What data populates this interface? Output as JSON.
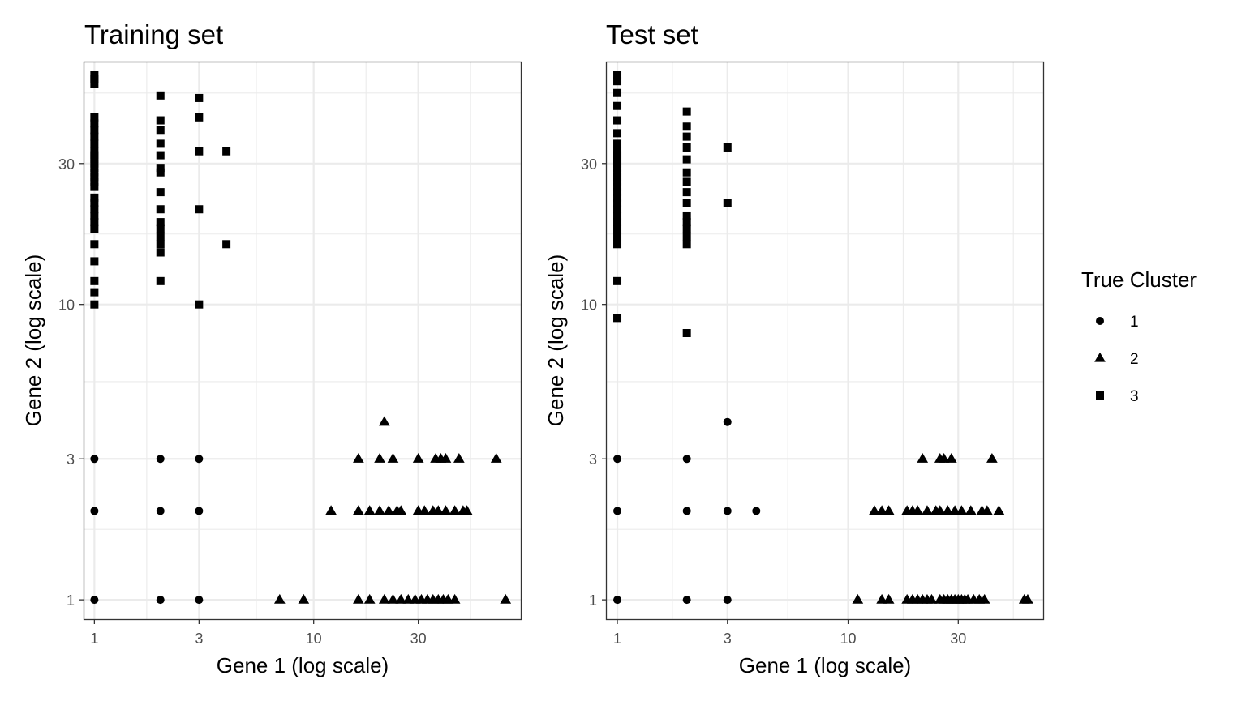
{
  "chart_data": [
    {
      "type": "scatter",
      "title": "Training set",
      "xlabel": "Gene 1 (log scale)",
      "ylabel": "Gene 2 (log scale)",
      "x_scale": "log",
      "y_scale": "log",
      "xlim": [
        0.9,
        88
      ],
      "ylim": [
        0.86,
        66
      ],
      "xticks": [
        1,
        3,
        10,
        30
      ],
      "xtick_labels": [
        "1",
        "3",
        "10",
        "30"
      ],
      "yticks": [
        1,
        3,
        10,
        30
      ],
      "ytick_labels": [
        "1",
        "3",
        "10",
        "30"
      ],
      "grid": true,
      "series": [
        {
          "name": "1",
          "shape": "circle",
          "points": [
            [
              1,
              1
            ],
            [
              1,
              2
            ],
            [
              1,
              3
            ],
            [
              2,
              1
            ],
            [
              2,
              2
            ],
            [
              2,
              3
            ],
            [
              3,
              1
            ],
            [
              3,
              2
            ],
            [
              3,
              3
            ]
          ]
        },
        {
          "name": "2",
          "shape": "triangle",
          "points": [
            [
              7,
              1
            ],
            [
              9,
              1
            ],
            [
              16,
              1
            ],
            [
              18,
              1
            ],
            [
              21,
              1
            ],
            [
              23,
              1
            ],
            [
              25,
              1
            ],
            [
              27,
              1
            ],
            [
              29,
              1
            ],
            [
              31,
              1
            ],
            [
              33,
              1
            ],
            [
              35,
              1
            ],
            [
              37,
              1
            ],
            [
              39,
              1
            ],
            [
              41,
              1
            ],
            [
              44,
              1
            ],
            [
              75,
              1
            ],
            [
              12,
              2
            ],
            [
              16,
              2
            ],
            [
              18,
              2
            ],
            [
              20,
              2
            ],
            [
              22,
              2
            ],
            [
              24,
              2
            ],
            [
              25,
              2
            ],
            [
              30,
              2
            ],
            [
              32,
              2
            ],
            [
              35,
              2
            ],
            [
              37,
              2
            ],
            [
              40,
              2
            ],
            [
              44,
              2
            ],
            [
              48,
              2
            ],
            [
              50,
              2
            ],
            [
              16,
              3
            ],
            [
              20,
              3
            ],
            [
              23,
              3
            ],
            [
              30,
              3
            ],
            [
              36,
              3
            ],
            [
              38,
              3
            ],
            [
              40,
              3
            ],
            [
              46,
              3
            ],
            [
              68,
              3
            ],
            [
              21,
              4
            ]
          ]
        },
        {
          "name": "3",
          "shape": "square",
          "points": [
            [
              1,
              10
            ],
            [
              1,
              11
            ],
            [
              1,
              12
            ],
            [
              1,
              14
            ],
            [
              1,
              16
            ],
            [
              1,
              18
            ],
            [
              1,
              19
            ],
            [
              1,
              20
            ],
            [
              1,
              21
            ],
            [
              1,
              22
            ],
            [
              1,
              23
            ],
            [
              1,
              25
            ],
            [
              1,
              26
            ],
            [
              1,
              27
            ],
            [
              1,
              28
            ],
            [
              1,
              29
            ],
            [
              1,
              30
            ],
            [
              1,
              31
            ],
            [
              1,
              32
            ],
            [
              1,
              33
            ],
            [
              1,
              35
            ],
            [
              1,
              37
            ],
            [
              1,
              39
            ],
            [
              1,
              41
            ],
            [
              1,
              43
            ],
            [
              1,
              56
            ],
            [
              1,
              58
            ],
            [
              1,
              60
            ],
            [
              2,
              12
            ],
            [
              2,
              15
            ],
            [
              2,
              16
            ],
            [
              2,
              17
            ],
            [
              2,
              18
            ],
            [
              2,
              19
            ],
            [
              2,
              21
            ],
            [
              2,
              24
            ],
            [
              2,
              28
            ],
            [
              2,
              29
            ],
            [
              2,
              32
            ],
            [
              2,
              35
            ],
            [
              2,
              39
            ],
            [
              2,
              42
            ],
            [
              2,
              51
            ],
            [
              3,
              10
            ],
            [
              3,
              21
            ],
            [
              3,
              33
            ],
            [
              3,
              43
            ],
            [
              3,
              50
            ],
            [
              4,
              16
            ],
            [
              4,
              33
            ]
          ]
        }
      ]
    },
    {
      "type": "scatter",
      "title": "Test set",
      "xlabel": "Gene 1 (log scale)",
      "ylabel": "Gene 2 (log scale)",
      "x_scale": "log",
      "y_scale": "log",
      "xlim": [
        0.9,
        70
      ],
      "ylim": [
        0.86,
        66
      ],
      "xticks": [
        1,
        3,
        10,
        30
      ],
      "xtick_labels": [
        "1",
        "3",
        "10",
        "30"
      ],
      "yticks": [
        1,
        3,
        10,
        30
      ],
      "ytick_labels": [
        "1",
        "3",
        "10",
        "30"
      ],
      "grid": true,
      "series": [
        {
          "name": "1",
          "shape": "circle",
          "points": [
            [
              1,
              1
            ],
            [
              1,
              2
            ],
            [
              1,
              3
            ],
            [
              2,
              1
            ],
            [
              2,
              2
            ],
            [
              2,
              3
            ],
            [
              3,
              1
            ],
            [
              3,
              2
            ],
            [
              3,
              4
            ],
            [
              4,
              2
            ]
          ]
        },
        {
          "name": "2",
          "shape": "triangle",
          "points": [
            [
              11,
              1
            ],
            [
              14,
              1
            ],
            [
              15,
              1
            ],
            [
              18,
              1
            ],
            [
              19,
              1
            ],
            [
              20,
              1
            ],
            [
              21,
              1
            ],
            [
              22,
              1
            ],
            [
              23,
              1
            ],
            [
              25,
              1
            ],
            [
              26,
              1
            ],
            [
              27,
              1
            ],
            [
              28,
              1
            ],
            [
              29,
              1
            ],
            [
              30,
              1
            ],
            [
              31,
              1
            ],
            [
              32,
              1
            ],
            [
              33,
              1
            ],
            [
              35,
              1
            ],
            [
              37,
              1
            ],
            [
              39,
              1
            ],
            [
              58,
              1
            ],
            [
              60,
              1
            ],
            [
              13,
              2
            ],
            [
              14,
              2
            ],
            [
              15,
              2
            ],
            [
              18,
              2
            ],
            [
              19,
              2
            ],
            [
              20,
              2
            ],
            [
              22,
              2
            ],
            [
              24,
              2
            ],
            [
              25,
              2
            ],
            [
              27,
              2
            ],
            [
              29,
              2
            ],
            [
              31,
              2
            ],
            [
              34,
              2
            ],
            [
              38,
              2
            ],
            [
              40,
              2
            ],
            [
              45,
              2
            ],
            [
              21,
              3
            ],
            [
              25,
              3
            ],
            [
              26,
              3
            ],
            [
              28,
              3
            ],
            [
              42,
              3
            ]
          ]
        },
        {
          "name": "3",
          "shape": "square",
          "points": [
            [
              1,
              9
            ],
            [
              1,
              12
            ],
            [
              1,
              16
            ],
            [
              1,
              17
            ],
            [
              1,
              18
            ],
            [
              1,
              19
            ],
            [
              1,
              20
            ],
            [
              1,
              21
            ],
            [
              1,
              22
            ],
            [
              1,
              23
            ],
            [
              1,
              24
            ],
            [
              1,
              25
            ],
            [
              1,
              26
            ],
            [
              1,
              27
            ],
            [
              1,
              28
            ],
            [
              1,
              29
            ],
            [
              1,
              30
            ],
            [
              1,
              31
            ],
            [
              1,
              32
            ],
            [
              1,
              33
            ],
            [
              1,
              35
            ],
            [
              1,
              38
            ],
            [
              1,
              42
            ],
            [
              1,
              47
            ],
            [
              1,
              52
            ],
            [
              1,
              57
            ],
            [
              1,
              60
            ],
            [
              2,
              8
            ],
            [
              2,
              16
            ],
            [
              2,
              17
            ],
            [
              2,
              18
            ],
            [
              2,
              19
            ],
            [
              2,
              20
            ],
            [
              2,
              22
            ],
            [
              2,
              24
            ],
            [
              2,
              26
            ],
            [
              2,
              28
            ],
            [
              2,
              31
            ],
            [
              2,
              34
            ],
            [
              2,
              37
            ],
            [
              2,
              40
            ],
            [
              2,
              45
            ],
            [
              3,
              22
            ],
            [
              3,
              34
            ]
          ]
        }
      ]
    }
  ],
  "legend": {
    "title": "True Cluster",
    "items": [
      {
        "label": "1",
        "shape": "circle"
      },
      {
        "label": "2",
        "shape": "triangle"
      },
      {
        "label": "3",
        "shape": "square"
      }
    ]
  },
  "colors": {
    "points": "#000000",
    "grid": "#ebebeb",
    "panel_border": "#333333",
    "tick_text": "#4d4d4d"
  }
}
